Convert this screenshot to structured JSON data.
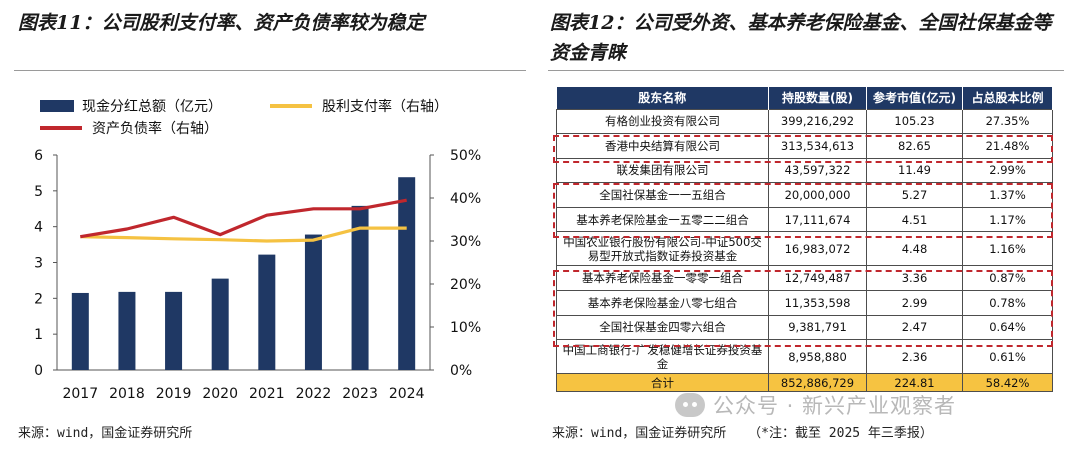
{
  "left_title": "图表11：公司股利支付率、资产负债率较为稳定",
  "right_title": "图表12：公司受外资、基本养老保险基金、全国社保基金等资金青睐",
  "legend": {
    "dividend": "现金分红总额（亿元）",
    "payout": "股利支付率（右轴）",
    "debt": "资产负债率（右轴）"
  },
  "chart_data": {
    "type": "bar",
    "categories": [
      "2017",
      "2018",
      "2019",
      "2020",
      "2021",
      "2022",
      "2023",
      "2024"
    ],
    "series": [
      {
        "name": "现金分红总额（亿元）",
        "type": "bar",
        "axis": "left",
        "color": "#1f3864",
        "values": [
          2.15,
          2.18,
          2.18,
          2.55,
          3.22,
          3.78,
          4.58,
          5.38
        ]
      },
      {
        "name": "股利支付率（右轴）",
        "type": "line",
        "axis": "right",
        "color": "#f5c242",
        "values": [
          31.0,
          30.8,
          30.5,
          30.3,
          30.0,
          30.2,
          33.0,
          33.0
        ]
      },
      {
        "name": "资产负债率（右轴）",
        "type": "line",
        "axis": "right",
        "color": "#c0272d",
        "values": [
          31.0,
          32.8,
          35.5,
          31.5,
          36.0,
          37.5,
          37.5,
          39.5
        ]
      }
    ],
    "y_left": {
      "min": 0,
      "max": 6,
      "ticks": [
        "0",
        "1",
        "2",
        "3",
        "4",
        "5",
        "6"
      ]
    },
    "y_right": {
      "min": 0,
      "max": 50,
      "ticks": [
        "0%",
        "10%",
        "20%",
        "30%",
        "40%",
        "50%"
      ]
    },
    "grid": false,
    "legend_position": "top"
  },
  "table": {
    "headers": [
      "股东名称",
      "持股数量(股)",
      "参考市值(亿元)",
      "占总股本比例"
    ],
    "rows": [
      [
        "有格创业投资有限公司",
        "399,216,292",
        "105.23",
        "27.35%"
      ],
      [
        "香港中央结算有限公司",
        "313,534,613",
        "82.65",
        "21.48%"
      ],
      [
        "联发集团有限公司",
        "43,597,322",
        "11.49",
        "2.99%"
      ],
      [
        "全国社保基金一一五组合",
        "20,000,000",
        "5.27",
        "1.37%"
      ],
      [
        "基本养老保险基金一五零二二组合",
        "17,111,674",
        "4.51",
        "1.17%"
      ],
      [
        "中国农业银行股份有限公司-中证500交易型开放式指数证券投资基金",
        "16,983,072",
        "4.48",
        "1.16%"
      ],
      [
        "基本养老保险基金一零零一组合",
        "12,749,487",
        "3.36",
        "0.87%"
      ],
      [
        "基本养老保险基金八零七组合",
        "11,353,598",
        "2.99",
        "0.78%"
      ],
      [
        "全国社保基金四零六组合",
        "9,381,791",
        "2.47",
        "0.64%"
      ],
      [
        "中国工商银行-广发稳健增长证券投资基金",
        "8,958,880",
        "2.36",
        "0.61%"
      ]
    ],
    "total": [
      "合计",
      "852,886,729",
      "224.81",
      "58.42%"
    ]
  },
  "left_source": "来源：wind，国金证券研究所",
  "right_source": "来源：wind，国金证券研究所",
  "right_note": "（*注：截至 2025 年三季报）",
  "watermark": "公众号 · 新兴产业观察者",
  "watermark_icon": "wechat-icon"
}
